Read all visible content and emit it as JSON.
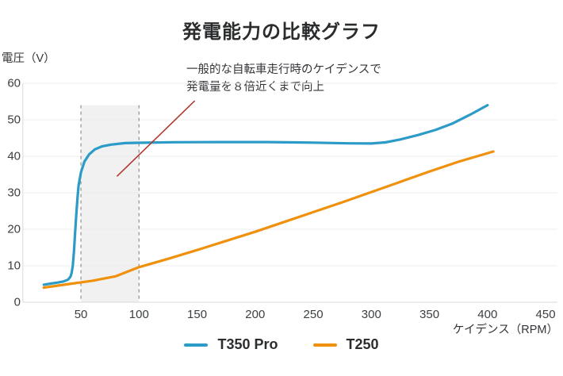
{
  "title": "発電能力の比較グラフ",
  "y_axis_label": "電圧（V）",
  "x_axis_label": "ケイデンス（RPM）",
  "annotation": {
    "line1": "一般的な自転車走行時のケイデンスで",
    "line2": "発電量を８倍近くまで向上"
  },
  "legend": [
    {
      "label": "T350 Pro",
      "color": "#2D9BC7"
    },
    {
      "label": "T250",
      "color": "#F0910D"
    }
  ],
  "colors": {
    "blue_series": "#2D9BC7",
    "orange_series": "#F0910D",
    "pointer_line": "#B0392E",
    "band_fill": "#ebebeb",
    "band_border": "#8f8f8f",
    "gridline": "#ececec",
    "axis": "#d8d8d8",
    "text": "#333538"
  },
  "chart_data": {
    "type": "line",
    "title": "発電能力の比較グラフ",
    "xlabel": "ケイデンス（RPM）",
    "ylabel": "電圧（V）",
    "xlim": [
      0,
      460
    ],
    "ylim": [
      0,
      60
    ],
    "x_ticks": [
      50,
      100,
      150,
      200,
      250,
      300,
      350,
      400,
      450
    ],
    "y_ticks": [
      0,
      10,
      20,
      30,
      40,
      50,
      60
    ],
    "grid": "horizontal",
    "legend_position": "bottom",
    "series": [
      {
        "name": "T350 Pro",
        "color": "#2D9BC7",
        "points": [
          [
            18,
            4.8
          ],
          [
            24,
            5.1
          ],
          [
            30,
            5.4
          ],
          [
            35,
            5.7
          ],
          [
            39,
            6.2
          ],
          [
            41,
            7
          ],
          [
            42,
            8
          ],
          [
            43,
            10
          ],
          [
            44,
            14
          ],
          [
            45,
            19
          ],
          [
            46,
            24
          ],
          [
            47,
            28.5
          ],
          [
            48,
            32
          ],
          [
            50,
            35.5
          ],
          [
            53,
            38.5
          ],
          [
            57,
            40.5
          ],
          [
            62,
            41.9
          ],
          [
            68,
            42.7
          ],
          [
            76,
            43.2
          ],
          [
            88,
            43.6
          ],
          [
            100,
            43.7
          ],
          [
            130,
            43.85
          ],
          [
            170,
            43.9
          ],
          [
            210,
            43.9
          ],
          [
            250,
            43.75
          ],
          [
            280,
            43.55
          ],
          [
            300,
            43.5
          ],
          [
            312,
            43.8
          ],
          [
            325,
            44.6
          ],
          [
            340,
            45.8
          ],
          [
            355,
            47.2
          ],
          [
            370,
            49
          ],
          [
            385,
            51.4
          ],
          [
            400,
            54
          ]
        ]
      },
      {
        "name": "T250",
        "color": "#F0910D",
        "points": [
          [
            18,
            4
          ],
          [
            40,
            5
          ],
          [
            60,
            5.9
          ],
          [
            80,
            7.1
          ],
          [
            100,
            9.6
          ],
          [
            125,
            11.9
          ],
          [
            150,
            14.3
          ],
          [
            175,
            16.8
          ],
          [
            200,
            19.3
          ],
          [
            225,
            22
          ],
          [
            250,
            24.7
          ],
          [
            275,
            27.4
          ],
          [
            300,
            30.2
          ],
          [
            325,
            33
          ],
          [
            350,
            35.8
          ],
          [
            375,
            38.5
          ],
          [
            405,
            41.3
          ]
        ]
      }
    ],
    "highlight_band": {
      "x_start": 50,
      "x_end": 100,
      "y_top": 54,
      "note": "typical bicycle riding cadence range"
    },
    "annotation_pointer_line": {
      "from_xy": [
        148,
        55.2
      ],
      "to_xy": [
        81,
        34.5
      ]
    }
  }
}
